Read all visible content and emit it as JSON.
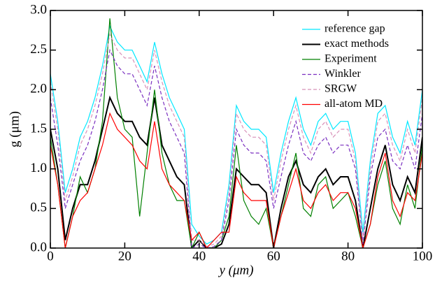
{
  "chart_data": {
    "type": "line",
    "xlabel": "y (μm)",
    "ylabel": "g (μm)",
    "x": [
      0,
      2,
      4,
      6,
      8,
      10,
      12,
      14,
      16,
      18,
      20,
      22,
      24,
      26,
      28,
      30,
      32,
      34,
      36,
      38,
      40,
      42,
      44,
      46,
      48,
      50,
      52,
      54,
      56,
      58,
      60,
      62,
      64,
      66,
      68,
      70,
      72,
      74,
      76,
      78,
      80,
      82,
      84,
      86,
      88,
      90,
      92,
      94,
      96,
      98,
      100
    ],
    "xlim": [
      0,
      100
    ],
    "xticks": [
      0,
      20,
      40,
      60,
      80,
      100
    ],
    "ylim": [
      0,
      3
    ],
    "yticks": [
      {
        "value": 0,
        "label": "0.0"
      },
      {
        "value": 0.5,
        "label": "0.5"
      },
      {
        "value": 1,
        "label": "1.0"
      },
      {
        "value": 1.5,
        "label": "1.5"
      },
      {
        "value": 2,
        "label": "2.0"
      },
      {
        "value": 2.5,
        "label": "2.5"
      },
      {
        "value": 3,
        "label": "3.0"
      }
    ],
    "legend": "upper right",
    "series": [
      {
        "name": "reference gap",
        "color": "#00e8ff",
        "dash": false,
        "values": [
          2.2,
          1.6,
          0.7,
          1.0,
          1.4,
          1.6,
          1.9,
          2.3,
          2.8,
          2.6,
          2.5,
          2.5,
          2.3,
          2.1,
          2.6,
          2.2,
          1.9,
          1.7,
          1.5,
          0.3,
          0.15,
          0.05,
          0.1,
          0.2,
          0.8,
          1.8,
          1.6,
          1.5,
          1.5,
          1.4,
          0.7,
          1.2,
          1.6,
          1.9,
          1.5,
          1.3,
          1.6,
          1.7,
          1.5,
          1.6,
          1.6,
          1.2,
          0.2,
          1.1,
          1.7,
          1.8,
          1.4,
          1.2,
          1.6,
          1.3,
          2.0
        ]
      },
      {
        "name": "exact methods",
        "color": "#000000",
        "dash": false,
        "values": [
          1.5,
          1.0,
          0.1,
          0.5,
          0.8,
          0.8,
          1.1,
          1.5,
          1.9,
          1.7,
          1.6,
          1.6,
          1.4,
          1.3,
          1.9,
          1.3,
          1.1,
          0.9,
          0.8,
          0.0,
          0.1,
          0.0,
          0.0,
          0.05,
          0.3,
          1.0,
          0.9,
          0.8,
          0.8,
          0.7,
          0.0,
          0.5,
          0.9,
          1.1,
          0.8,
          0.7,
          0.9,
          1.0,
          0.8,
          0.9,
          0.9,
          0.6,
          0.0,
          0.5,
          1.0,
          1.3,
          0.8,
          0.6,
          0.9,
          0.7,
          1.4
        ]
      },
      {
        "name": "Experiment",
        "color": "#008000",
        "dash": false,
        "values": [
          1.4,
          0.8,
          0.0,
          0.4,
          0.9,
          0.7,
          1.0,
          1.6,
          2.9,
          1.9,
          1.5,
          1.4,
          0.4,
          1.2,
          2.0,
          1.2,
          0.8,
          0.6,
          0.6,
          0.0,
          0.2,
          0.0,
          0.0,
          0.1,
          0.4,
          1.3,
          0.6,
          0.4,
          0.3,
          0.5,
          0.0,
          0.4,
          0.8,
          1.2,
          0.5,
          0.4,
          0.8,
          0.9,
          0.5,
          0.6,
          0.7,
          0.4,
          0.0,
          0.3,
          0.8,
          1.1,
          0.5,
          0.3,
          0.8,
          0.5,
          1.3
        ]
      },
      {
        "name": "Winkler",
        "color": "#7a2fc0",
        "dash": true,
        "values": [
          1.9,
          1.3,
          0.5,
          0.8,
          1.1,
          1.3,
          1.6,
          2.0,
          2.5,
          2.3,
          2.2,
          2.2,
          2.0,
          1.8,
          2.3,
          1.9,
          1.6,
          1.4,
          1.2,
          0.0,
          0.05,
          0.0,
          0.02,
          0.1,
          0.6,
          1.5,
          1.3,
          1.2,
          1.2,
          1.1,
          0.5,
          0.9,
          1.3,
          1.6,
          1.2,
          1.1,
          1.3,
          1.4,
          1.2,
          1.3,
          1.3,
          1.0,
          0.05,
          0.9,
          1.4,
          1.5,
          1.1,
          1.0,
          1.3,
          1.0,
          1.7
        ]
      },
      {
        "name": "SRGW",
        "color": "#d890b8",
        "dash": true,
        "values": [
          2.1,
          1.5,
          0.6,
          0.9,
          1.3,
          1.5,
          1.8,
          2.2,
          2.7,
          2.5,
          2.4,
          2.4,
          2.2,
          2.0,
          2.5,
          2.1,
          1.8,
          1.6,
          1.4,
          0.1,
          0.1,
          0.02,
          0.05,
          0.15,
          0.7,
          1.7,
          1.5,
          1.4,
          1.4,
          1.3,
          0.6,
          1.1,
          1.5,
          1.8,
          1.4,
          1.2,
          1.5,
          1.6,
          1.4,
          1.5,
          1.5,
          1.1,
          0.1,
          1.0,
          1.6,
          1.7,
          1.3,
          1.1,
          1.5,
          1.2,
          1.9
        ]
      },
      {
        "name": "all-atom MD",
        "color": "#ff0000",
        "dash": false,
        "values": [
          1.3,
          0.8,
          0.0,
          0.4,
          0.6,
          0.7,
          1.0,
          1.3,
          1.7,
          1.5,
          1.4,
          1.3,
          1.1,
          1.0,
          1.6,
          1.0,
          0.8,
          0.7,
          0.6,
          0.1,
          0.2,
          0.0,
          0.1,
          0.2,
          0.2,
          0.9,
          0.7,
          0.6,
          0.6,
          0.6,
          0.0,
          0.4,
          0.7,
          1.0,
          0.6,
          0.5,
          0.7,
          0.8,
          0.6,
          0.7,
          0.7,
          0.5,
          0.0,
          0.3,
          0.9,
          1.2,
          0.6,
          0.4,
          0.7,
          0.6,
          1.2
        ]
      }
    ]
  }
}
